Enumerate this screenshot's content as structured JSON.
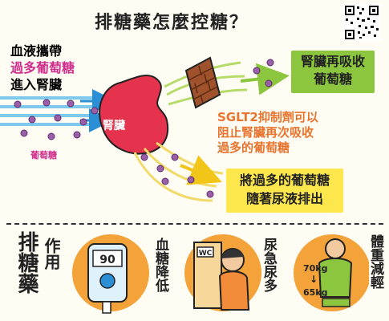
{
  "title": "排糖藥怎麼控糖？",
  "left_labels": [
    {
      "text": "血液攜帶",
      "color": "#1e73b9"
    },
    {
      "text": "過多葡萄糖",
      "color": "#d02f8d"
    },
    {
      "text": "進入腎臟",
      "color": "#1e73b9"
    }
  ],
  "glucose_label": "葡萄糖",
  "kidney_label": "腎臟",
  "green_box": {
    "line1": "腎臟再吸收",
    "line2": "葡萄糖"
  },
  "sglt2_text": {
    "line1": "SGLT2抑制劑可以",
    "line2": "阻止腎臟再次吸收",
    "line3": "過多的葡萄糖"
  },
  "yellow_box": {
    "line1": "將過多的葡萄糖",
    "line2": "隨著尿液排出"
  },
  "effects_title": {
    "part1": "排糖藥",
    "part2": "作用"
  },
  "effects": [
    {
      "label": "血糖降低",
      "icon": "glucose-meter-icon",
      "meter_value": "90"
    },
    {
      "label": "尿急尿多",
      "icon": "toilet-person-icon",
      "door_label": "WC"
    },
    {
      "label": "體重減輕",
      "icon": "scale-person-icon",
      "weight_before": "70kg",
      "weight_after": "65kg"
    }
  ],
  "colors": {
    "blue": "#1e73b9",
    "pink": "#d02f8d",
    "orange": "#e8742f",
    "green": "#8cc63f",
    "yellow": "#fde74c",
    "kidney": "#e6334d"
  }
}
